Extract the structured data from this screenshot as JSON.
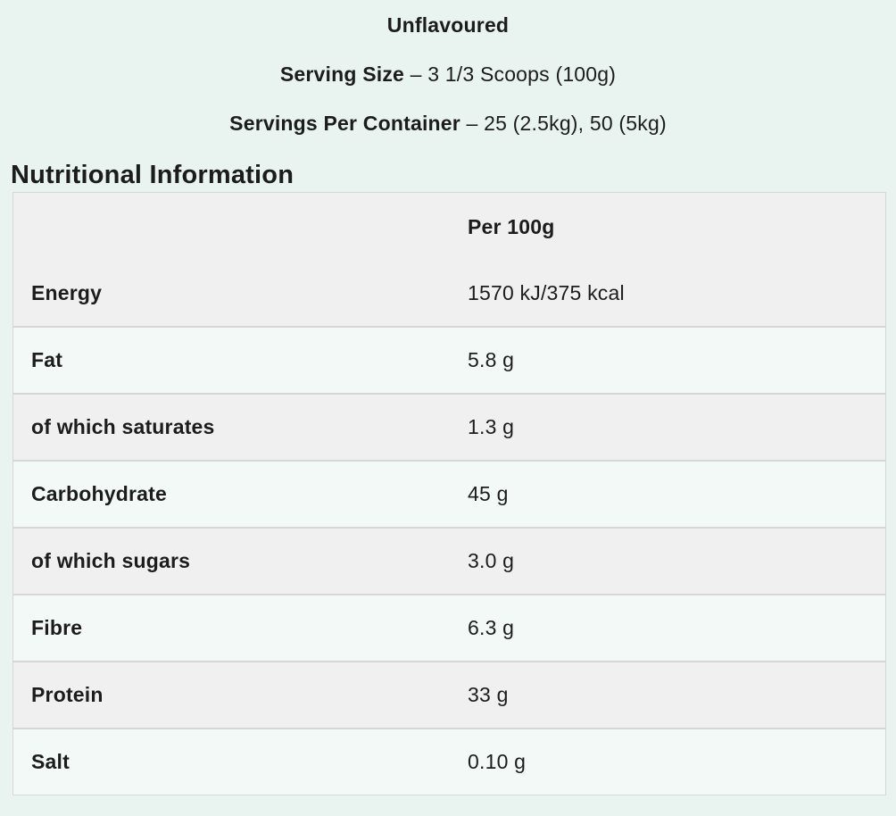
{
  "header": {
    "flavour": "Unflavoured",
    "serving_size_label": "Serving Size",
    "serving_size_value": "– 3 1/3 Scoops (100g)",
    "servings_per_container_label": "Servings Per Container",
    "servings_per_container_value": "– 25 (2.5kg), 50 (5kg)"
  },
  "section_title": "Nutritional Information",
  "table": {
    "value_column_header": "Per 100g",
    "rows": [
      {
        "label": "Energy",
        "value": "1570 kJ/375 kcal"
      },
      {
        "label": "Fat",
        "value": "5.8 g"
      },
      {
        "label": "of which saturates",
        "value": "1.3 g"
      },
      {
        "label": "Carbohydrate",
        "value": "45 g"
      },
      {
        "label": "of which sugars",
        "value": "3.0 g"
      },
      {
        "label": "Fibre",
        "value": "6.3 g"
      },
      {
        "label": "Protein",
        "value": "33 g"
      },
      {
        "label": "Salt",
        "value": "0.10 g"
      }
    ]
  },
  "colors": {
    "page_background": "#e9f4f1",
    "row_grey": "#f0f0f0",
    "row_mint": "#f2f9f7",
    "border": "#d6d6d6",
    "text": "#1c1c1c"
  }
}
